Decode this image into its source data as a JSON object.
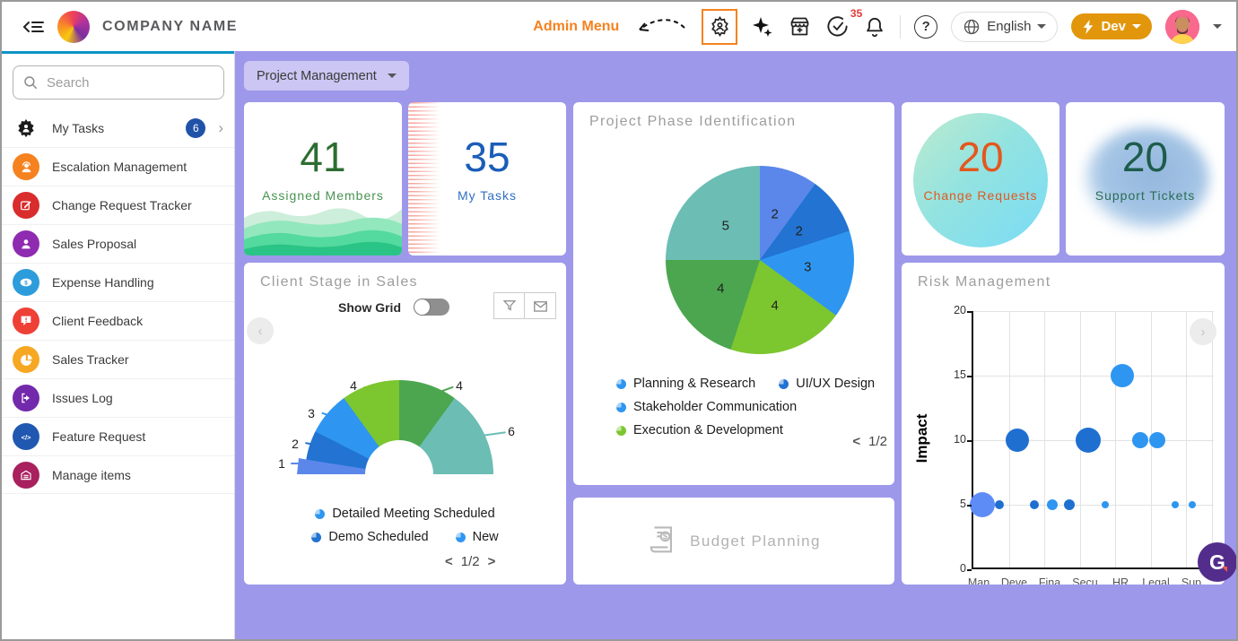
{
  "header": {
    "company_name": "COMPANY NAME",
    "admin_menu_label": "Admin Menu",
    "approvals_count": "35",
    "help_symbol": "?",
    "language_label": "English",
    "dev_label": "Dev"
  },
  "sidebar": {
    "search_placeholder": "Search",
    "items": [
      {
        "label": "My Tasks",
        "badge": "6",
        "icon": "tasks-gear",
        "icon_color": "#1b1b1b",
        "has_chevron": true
      },
      {
        "label": "Escalation Management",
        "icon": "escalation",
        "icon_color": "#f5821f"
      },
      {
        "label": "Change Request Tracker",
        "icon": "change-request",
        "icon_color": "#d92c2c"
      },
      {
        "label": "Sales Proposal",
        "icon": "sales-proposal",
        "icon_color": "#8e2bb0"
      },
      {
        "label": "Expense Handling",
        "icon": "expense",
        "icon_color": "#2d9cdb"
      },
      {
        "label": "Client Feedback",
        "icon": "feedback",
        "icon_color": "#ef4036"
      },
      {
        "label": "Sales Tracker",
        "icon": "sales-tracker",
        "icon_color": "#f7a823"
      },
      {
        "label": "Issues Log",
        "icon": "issues-log",
        "icon_color": "#7329ac"
      },
      {
        "label": "Feature Request",
        "icon": "feature-request",
        "icon_color": "#2057b0"
      },
      {
        "label": "Manage items",
        "icon": "manage-items",
        "icon_color": "#a8205e"
      }
    ]
  },
  "main": {
    "project_selector_label": "Project Management",
    "show_grid_label": "Show Grid",
    "show_grid_enabled": false,
    "budget_label": "Budget Planning",
    "widget_letter": "G",
    "stat_cards": [
      {
        "value": "41",
        "label": "Assigned Members",
        "value_color": "#2c6e31",
        "label_color": "#47934f"
      },
      {
        "value": "35",
        "label": "My Tasks",
        "value_color": "#1b5db8",
        "label_color": "#2f6fc2"
      },
      {
        "value": "20",
        "label": "Change Requests",
        "value_color": "#e4571d",
        "label_color": "#e4571d"
      },
      {
        "value": "20",
        "label": "Support Tickets",
        "value_color": "#1d5c4b",
        "label_color": "#2a6d56"
      }
    ]
  },
  "chart_data": [
    {
      "type": "pie",
      "title": "Project Phase Identification",
      "values": [
        2,
        2,
        3,
        4,
        4,
        5
      ],
      "colors": [
        "#5b87ea",
        "#2273d2",
        "#2e96f1",
        "#7cc62f",
        "#4ca64f",
        "#6cbdb4"
      ],
      "legend": [
        {
          "label": "Planning & Research",
          "color": "#2e96f1"
        },
        {
          "label": "UI/UX Design",
          "color": "#2273d2"
        },
        {
          "label": "Stakeholder Communication",
          "color": "#2e96f1"
        },
        {
          "label": "Execution & Development",
          "color": "#7cc62f"
        }
      ],
      "pagination": {
        "prev": "<",
        "page": "1/2"
      }
    },
    {
      "type": "semi-donut",
      "title": "Client Stage in Sales",
      "values": [
        1,
        2,
        3,
        4,
        4,
        6
      ],
      "colors": [
        "#5b87ea",
        "#2273d2",
        "#2e96f1",
        "#7cc62f",
        "#4ca64f",
        "#6cbdb4"
      ],
      "legend": [
        {
          "label": "Detailed Meeting Scheduled",
          "color": "#2e96f1"
        },
        {
          "label": "Demo Scheduled",
          "color": "#2273d2"
        },
        {
          "label": "New",
          "color": "#2e96f1"
        }
      ],
      "pagination": {
        "prev": "<",
        "page": "1/2",
        "next": ">"
      }
    },
    {
      "type": "scatter",
      "title": "Risk Management",
      "ylabel": "Impact",
      "ylim": [
        0,
        20
      ],
      "yticks": [
        0,
        5,
        10,
        15,
        20
      ],
      "x_categories": [
        "Man",
        "Deve",
        "Fina",
        "Secu",
        "HR",
        "Legal",
        "Sup"
      ],
      "grid": true,
      "points": [
        {
          "x": 0.25,
          "y": 5,
          "r": 14,
          "color": "#5e8cf7"
        },
        {
          "x": 0.73,
          "y": 5,
          "r": 5,
          "color": "#1f6fd0"
        },
        {
          "x": 1.23,
          "y": 10,
          "r": 13,
          "color": "#1f6fd0"
        },
        {
          "x": 1.73,
          "y": 5,
          "r": 5,
          "color": "#1f6fd0"
        },
        {
          "x": 2.23,
          "y": 5,
          "r": 6,
          "color": "#2e96f1"
        },
        {
          "x": 2.72,
          "y": 5,
          "r": 6,
          "color": "#1f6fd0"
        },
        {
          "x": 3.25,
          "y": 10,
          "r": 14,
          "color": "#1f6fd0"
        },
        {
          "x": 3.73,
          "y": 5,
          "r": 4,
          "color": "#2e96f1"
        },
        {
          "x": 4.2,
          "y": 15,
          "r": 13,
          "color": "#2e96f1"
        },
        {
          "x": 4.7,
          "y": 10,
          "r": 9,
          "color": "#2e96f1"
        },
        {
          "x": 5.2,
          "y": 10,
          "r": 9,
          "color": "#2e96f1"
        },
        {
          "x": 5.7,
          "y": 5,
          "r": 4,
          "color": "#2e96f1"
        },
        {
          "x": 6.18,
          "y": 5,
          "r": 4,
          "color": "#2e96f1"
        }
      ]
    }
  ]
}
